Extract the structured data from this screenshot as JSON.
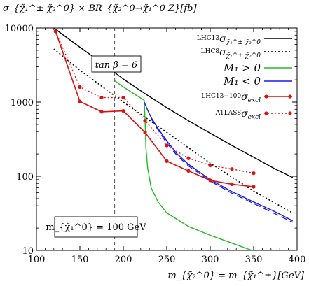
{
  "chart_data": {
    "type": "line",
    "ylabel": "σ_{χ̃₁^± χ̃₂^0} × BR_{χ̃₂^0→χ̃₁^0 Z}[fb]",
    "xlabel": "m_{χ̃₂^0} = m_{χ̃₁^±}[GeV]",
    "xlim": [
      100,
      400
    ],
    "ylim": [
      10,
      10000
    ],
    "yscale": "log",
    "x_ticks": [
      "100",
      "150",
      "200",
      "250",
      "300",
      "350",
      "400"
    ],
    "y_ticks": [
      "10",
      "100",
      "1000",
      "10000"
    ],
    "legend_position": "top-right",
    "annotations": {
      "tanbeta": "tan β = 6",
      "lsp_mass": "m_{χ̃₁^0} = 100 GeV",
      "vline_x": 190
    },
    "series": [
      {
        "name": "LHC13 σ_{χ̃₁^± χ̃₂^0}",
        "legend_prefix": "LHC13",
        "legend_main": "σ",
        "legend_sub": "χ̃₁^± χ̃₂^0",
        "color": "#000000",
        "style": "solid",
        "x": [
          120,
          150,
          175,
          200,
          225,
          250,
          275,
          300,
          325,
          350,
          375,
          395
        ],
        "y": [
          10000,
          5500,
          3400,
          2050,
          1300,
          840,
          560,
          380,
          260,
          180,
          125,
          96
        ]
      },
      {
        "name": "LHC8 σ_{χ̃₁^± χ̃₂^0}",
        "legend_prefix": "LHC8",
        "legend_main": "σ",
        "legend_sub": "χ̃₁^± χ̃₂^0",
        "color": "#000000",
        "style": "dotted",
        "x": [
          120,
          150,
          200,
          250,
          300,
          350,
          395
        ],
        "y": [
          5200,
          2700,
          1000,
          390,
          150,
          63,
          32
        ]
      },
      {
        "name": "M1 > 0",
        "legend_main": "M₁ > 0",
        "color": "#22bb22",
        "style": "solid",
        "x": [
          190,
          200,
          212,
          224,
          225,
          226,
          228,
          232,
          240,
          250,
          275,
          300,
          325,
          348
        ],
        "y": [
          1950,
          1600,
          1300,
          1060,
          600,
          250,
          130,
          70,
          45,
          32,
          21,
          16,
          12.5,
          10
        ]
      },
      {
        "name": "M1 < 0",
        "legend_main": "M₁ < 0",
        "color": "#1a1ae6",
        "style": "solid",
        "x": [
          224,
          228,
          232,
          240,
          250,
          262,
          275,
          300,
          325,
          350,
          375,
          395
        ],
        "y": [
          1000,
          780,
          620,
          440,
          300,
          200,
          145,
          90,
          62,
          45,
          33,
          25
        ]
      },
      {
        "name": "M1 < 0 (dashed)",
        "color": "#1a1ae6",
        "style": "dashed",
        "x": [
          232,
          240,
          250,
          262,
          275,
          300,
          325,
          350,
          375,
          395
        ],
        "y": [
          600,
          420,
          280,
          190,
          138,
          86,
          59,
          43,
          31,
          24
        ]
      },
      {
        "name": "LHC13−100 σ_excl",
        "legend_prefix": "LHC13−100",
        "legend_main": "σ",
        "legend_sub": "excl",
        "color": "#dd1111",
        "style": "solid-points",
        "x": [
          122,
          150,
          175,
          200,
          225,
          250,
          275,
          300,
          325,
          350
        ],
        "y": [
          9000,
          1020,
          740,
          760,
          390,
          160,
          118,
          88,
          78,
          72
        ]
      },
      {
        "name": "ATLAS8 σ_excl",
        "legend_prefix": "ATLAS8",
        "legend_main": "σ",
        "legend_sub": "excl",
        "color": "#dd1111",
        "style": "dotted-points",
        "x": [
          122,
          150,
          175,
          200,
          225,
          250,
          275,
          300,
          325,
          350
        ],
        "y": [
          9000,
          1600,
          1150,
          1150,
          560,
          260,
          175,
          140,
          125,
          110
        ]
      }
    ]
  }
}
